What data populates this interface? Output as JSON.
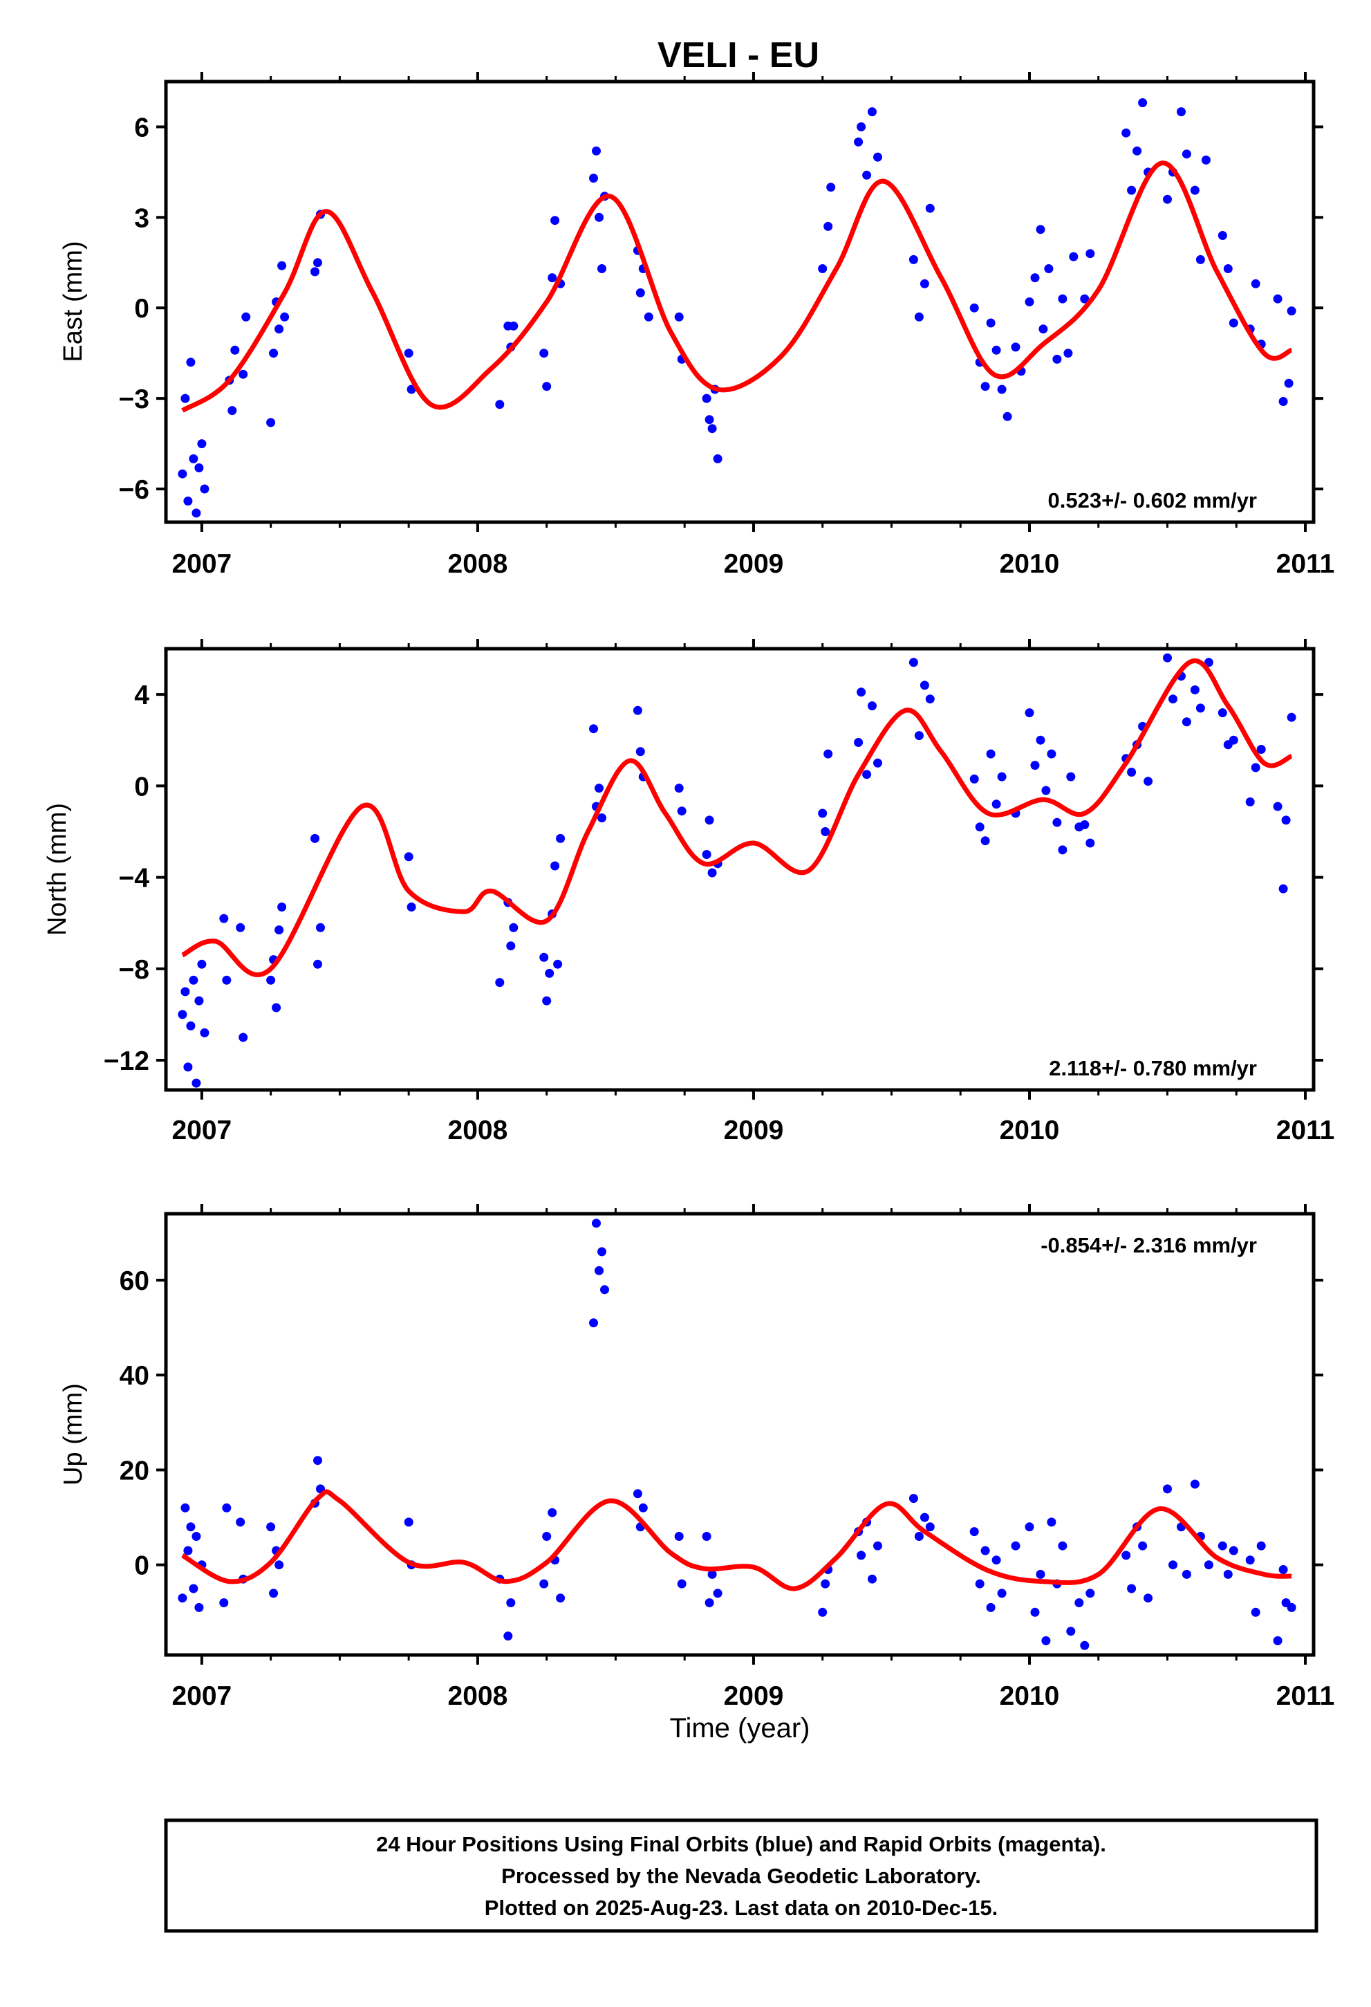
{
  "title": "VELI - EU",
  "colors": {
    "final_points": "#0000ff",
    "rapid_points": "#ff00ff",
    "model": "#ff0000",
    "frame": "#000000"
  },
  "xlabel": "Time (year)",
  "footer": {
    "line1": "24 Hour Positions Using Final Orbits (blue) and Rapid Orbits (magenta).",
    "line2": "Processed by the Nevada Geodetic Laboratory.",
    "line3": "Plotted on 2025-Aug-23. Last data on 2010-Dec-15."
  },
  "chart_data": [
    {
      "type": "scatter",
      "ylabel": "East (mm)",
      "rate": "0.523+/- 0.602 mm/yr",
      "xlim": [
        2006.87,
        2011.03
      ],
      "ylim": [
        -7.1,
        7.5
      ],
      "xticks": [
        2007,
        2008,
        2009,
        2010,
        2011
      ],
      "yticks": [
        6,
        3,
        0,
        -3,
        -6
      ],
      "ytick_labels": [
        "6",
        "3",
        "0",
        "−3",
        "−6"
      ],
      "grid": false,
      "model": {
        "x": [
          2006.93,
          2007.1,
          2007.3,
          2007.45,
          2007.62,
          2007.83,
          2008.05,
          2008.25,
          2008.48,
          2008.7,
          2008.87,
          2009.1,
          2009.3,
          2009.47,
          2009.68,
          2009.87,
          2010.05,
          2010.25,
          2010.48,
          2010.68,
          2010.85,
          2010.95
        ],
        "y": [
          -3.4,
          -2.4,
          0.5,
          3.2,
          0.5,
          -3.2,
          -2.0,
          0.2,
          3.7,
          -0.8,
          -2.7,
          -1.6,
          1.3,
          4.2,
          1.0,
          -2.2,
          -1.2,
          0.6,
          4.8,
          1.2,
          -1.5,
          -1.4
        ]
      },
      "series": [
        {
          "name": "Final Orbits",
          "x": [
            2006.93,
            2006.94,
            2006.95,
            2006.96,
            2006.97,
            2006.98,
            2006.99,
            2007.0,
            2007.01,
            2007.1,
            2007.11,
            2007.12,
            2007.15,
            2007.16,
            2007.25,
            2007.26,
            2007.27,
            2007.28,
            2007.29,
            2007.3,
            2007.41,
            2007.42,
            2007.43,
            2007.75,
            2007.76,
            2008.08,
            2008.11,
            2008.12,
            2008.13,
            2008.24,
            2008.25,
            2008.27,
            2008.28,
            2008.3,
            2008.42,
            2008.43,
            2008.44,
            2008.45,
            2008.46,
            2008.58,
            2008.59,
            2008.6,
            2008.62,
            2008.73,
            2008.74,
            2008.83,
            2008.84,
            2008.85,
            2008.86,
            2008.87,
            2009.25,
            2009.27,
            2009.28,
            2009.38,
            2009.39,
            2009.41,
            2009.43,
            2009.45,
            2009.58,
            2009.6,
            2009.62,
            2009.64,
            2009.8,
            2009.82,
            2009.84,
            2009.86,
            2009.88,
            2009.9,
            2009.92,
            2009.95,
            2009.97,
            2010.0,
            2010.02,
            2010.04,
            2010.05,
            2010.07,
            2010.1,
            2010.12,
            2010.14,
            2010.16,
            2010.2,
            2010.22,
            2010.35,
            2010.37,
            2010.39,
            2010.41,
            2010.43,
            2010.5,
            2010.52,
            2010.55,
            2010.57,
            2010.6,
            2010.62,
            2010.64,
            2010.7,
            2010.72,
            2010.74,
            2010.8,
            2010.82,
            2010.84,
            2010.9,
            2010.92,
            2010.94,
            2010.95
          ],
          "y": [
            -5.5,
            -3.0,
            -6.4,
            -1.8,
            -5.0,
            -6.8,
            -5.3,
            -4.5,
            -6.0,
            -2.4,
            -3.4,
            -1.4,
            -2.2,
            -0.3,
            -3.8,
            -1.5,
            0.2,
            -0.7,
            1.4,
            -0.3,
            1.2,
            1.5,
            3.1,
            -1.5,
            -2.7,
            -3.2,
            -0.6,
            -1.3,
            -0.6,
            -1.5,
            -2.6,
            1.0,
            2.9,
            0.8,
            4.3,
            5.2,
            3.0,
            1.3,
            3.7,
            1.9,
            0.5,
            1.3,
            -0.3,
            -0.3,
            -1.7,
            -3.0,
            -3.7,
            -4.0,
            -2.7,
            -5.0,
            1.3,
            2.7,
            4.0,
            5.5,
            6.0,
            4.4,
            6.5,
            5.0,
            1.6,
            -0.3,
            0.8,
            3.3,
            0.0,
            -1.8,
            -2.6,
            -0.5,
            -1.4,
            -2.7,
            -3.6,
            -1.3,
            -2.1,
            0.2,
            1.0,
            2.6,
            -0.7,
            1.3,
            -1.7,
            0.3,
            -1.5,
            1.7,
            0.3,
            1.8,
            5.8,
            3.9,
            5.2,
            6.8,
            4.5,
            3.6,
            4.5,
            6.5,
            5.1,
            3.9,
            1.6,
            4.9,
            2.4,
            1.3,
            -0.5,
            -0.7,
            0.8,
            -1.2,
            0.3,
            -3.1,
            -2.5,
            -0.1
          ]
        }
      ]
    },
    {
      "type": "scatter",
      "ylabel": "North (mm)",
      "rate": "2.118+/- 0.780 mm/yr",
      "xlim": [
        2006.87,
        2011.03
      ],
      "ylim": [
        -13.3,
        6.0
      ],
      "xticks": [
        2007,
        2008,
        2009,
        2010,
        2011
      ],
      "yticks": [
        4,
        0,
        -4,
        -8,
        -12
      ],
      "ytick_labels": [
        "4",
        "0",
        "−4",
        "−8",
        "−12"
      ],
      "grid": false,
      "model": {
        "x": [
          2006.93,
          2007.05,
          2007.25,
          2007.58,
          2007.75,
          2007.95,
          2008.05,
          2008.25,
          2008.4,
          2008.55,
          2008.68,
          2008.82,
          2009.0,
          2009.2,
          2009.38,
          2009.55,
          2009.68,
          2009.85,
          2010.05,
          2010.2,
          2010.35,
          2010.58,
          2010.72,
          2010.85,
          2010.95
        ],
        "y": [
          -7.4,
          -6.8,
          -8.0,
          -0.9,
          -4.6,
          -5.5,
          -4.6,
          -5.9,
          -2.0,
          1.1,
          -1.2,
          -3.4,
          -2.5,
          -3.7,
          0.5,
          3.3,
          1.5,
          -1.2,
          -0.6,
          -1.2,
          1.0,
          5.4,
          3.5,
          1.0,
          1.3
        ]
      },
      "series": [
        {
          "name": "Final Orbits",
          "x": [
            2006.93,
            2006.94,
            2006.95,
            2006.96,
            2006.97,
            2006.98,
            2006.99,
            2007.0,
            2007.01,
            2007.08,
            2007.09,
            2007.14,
            2007.15,
            2007.25,
            2007.26,
            2007.27,
            2007.28,
            2007.29,
            2007.41,
            2007.42,
            2007.43,
            2007.75,
            2007.76,
            2008.08,
            2008.11,
            2008.12,
            2008.13,
            2008.24,
            2008.25,
            2008.26,
            2008.27,
            2008.28,
            2008.29,
            2008.3,
            2008.42,
            2008.43,
            2008.44,
            2008.45,
            2008.58,
            2008.59,
            2008.6,
            2008.73,
            2008.74,
            2008.83,
            2008.84,
            2008.85,
            2008.87,
            2009.25,
            2009.26,
            2009.27,
            2009.38,
            2009.39,
            2009.41,
            2009.43,
            2009.45,
            2009.58,
            2009.6,
            2009.62,
            2009.64,
            2009.8,
            2009.82,
            2009.84,
            2009.86,
            2009.88,
            2009.9,
            2009.95,
            2010.0,
            2010.02,
            2010.04,
            2010.06,
            2010.08,
            2010.1,
            2010.12,
            2010.15,
            2010.18,
            2010.2,
            2010.22,
            2010.35,
            2010.37,
            2010.39,
            2010.41,
            2010.43,
            2010.5,
            2010.52,
            2010.55,
            2010.57,
            2010.6,
            2010.62,
            2010.65,
            2010.7,
            2010.72,
            2010.74,
            2010.8,
            2010.82,
            2010.84,
            2010.9,
            2010.92,
            2010.93,
            2010.95
          ],
          "y": [
            -10.0,
            -9.0,
            -12.3,
            -10.5,
            -8.5,
            -13.0,
            -9.4,
            -7.8,
            -10.8,
            -5.8,
            -8.5,
            -6.2,
            -11.0,
            -8.5,
            -7.6,
            -9.7,
            -6.3,
            -5.3,
            -2.3,
            -7.8,
            -6.2,
            -3.1,
            -5.3,
            -8.6,
            -5.1,
            -7.0,
            -6.2,
            -7.5,
            -9.4,
            -8.2,
            -5.6,
            -3.5,
            -7.8,
            -2.3,
            2.5,
            -0.9,
            -0.1,
            -1.4,
            3.3,
            1.5,
            0.4,
            -0.1,
            -1.1,
            -3.0,
            -1.5,
            -3.8,
            -3.4,
            -1.2,
            -2.0,
            1.4,
            1.9,
            4.1,
            0.5,
            3.5,
            1.0,
            5.4,
            2.2,
            4.4,
            3.8,
            0.3,
            -1.8,
            -2.4,
            1.4,
            -0.8,
            0.4,
            -1.2,
            3.2,
            0.9,
            2.0,
            -0.2,
            1.4,
            -1.6,
            -2.8,
            0.4,
            -1.8,
            -1.7,
            -2.5,
            1.2,
            0.6,
            1.8,
            2.6,
            0.2,
            5.6,
            3.8,
            4.8,
            2.8,
            4.2,
            3.4,
            5.4,
            3.2,
            1.8,
            2.0,
            -0.7,
            0.8,
            1.6,
            -0.9,
            -4.5,
            -1.5,
            3.0
          ]
        }
      ]
    },
    {
      "type": "scatter",
      "ylabel": "Up (mm)",
      "rate": "-0.854+/- 2.316 mm/yr",
      "xlim": [
        2006.87,
        2011.03
      ],
      "ylim": [
        -19,
        74
      ],
      "xticks": [
        2007,
        2008,
        2009,
        2010,
        2011
      ],
      "yticks": [
        60,
        40,
        20,
        0
      ],
      "ytick_labels": [
        "60",
        "40",
        "20",
        "0"
      ],
      "grid": false,
      "model": {
        "x": [
          2006.93,
          2007.1,
          2007.25,
          2007.42,
          2007.5,
          2007.75,
          2007.95,
          2008.1,
          2008.25,
          2008.48,
          2008.7,
          2008.82,
          2009.0,
          2009.15,
          2009.3,
          2009.48,
          2009.62,
          2009.85,
          2010.05,
          2010.25,
          2010.47,
          2010.68,
          2010.85,
          2010.95
        ],
        "y": [
          2.0,
          -3.5,
          0.5,
          14.0,
          13.5,
          0.5,
          0.5,
          -3.5,
          0.5,
          13.5,
          2.5,
          -0.8,
          -0.5,
          -5.0,
          1.5,
          12.8,
          7.0,
          -1.2,
          -3.5,
          -2.0,
          11.8,
          1.5,
          -2.0,
          -2.4
        ]
      },
      "series": [
        {
          "name": "Final Orbits",
          "x": [
            2006.93,
            2006.94,
            2006.95,
            2006.96,
            2006.97,
            2006.98,
            2006.99,
            2007.0,
            2007.08,
            2007.09,
            2007.14,
            2007.15,
            2007.25,
            2007.26,
            2007.27,
            2007.28,
            2007.41,
            2007.42,
            2007.43,
            2007.75,
            2007.76,
            2008.08,
            2008.11,
            2008.12,
            2008.24,
            2008.25,
            2008.27,
            2008.28,
            2008.3,
            2008.42,
            2008.43,
            2008.44,
            2008.45,
            2008.46,
            2008.58,
            2008.59,
            2008.6,
            2008.73,
            2008.74,
            2008.83,
            2008.84,
            2008.85,
            2008.87,
            2009.25,
            2009.26,
            2009.27,
            2009.38,
            2009.39,
            2009.41,
            2009.43,
            2009.45,
            2009.58,
            2009.6,
            2009.62,
            2009.64,
            2009.8,
            2009.82,
            2009.84,
            2009.86,
            2009.88,
            2009.9,
            2009.95,
            2010.0,
            2010.02,
            2010.04,
            2010.06,
            2010.08,
            2010.1,
            2010.12,
            2010.15,
            2010.18,
            2010.2,
            2010.22,
            2010.35,
            2010.37,
            2010.39,
            2010.41,
            2010.43,
            2010.5,
            2010.52,
            2010.55,
            2010.57,
            2010.6,
            2010.62,
            2010.65,
            2010.7,
            2010.72,
            2010.74,
            2010.8,
            2010.82,
            2010.84,
            2010.9,
            2010.92,
            2010.93,
            2010.95
          ],
          "y": [
            -7.0,
            12.0,
            3.0,
            8.0,
            -5.0,
            6.0,
            -9.0,
            0.0,
            -8.0,
            12.0,
            9.0,
            -3.0,
            8.0,
            -6.0,
            3.0,
            0.0,
            13.0,
            22.0,
            16.0,
            9.0,
            0.0,
            -3.0,
            -15.0,
            -8.0,
            -4.0,
            6.0,
            11.0,
            1.0,
            -7.0,
            51.0,
            72.0,
            62.0,
            66.0,
            58.0,
            15.0,
            8.0,
            12.0,
            6.0,
            -4.0,
            6.0,
            -8.0,
            -2.0,
            -6.0,
            -10.0,
            -4.0,
            -1.0,
            7.0,
            2.0,
            9.0,
            -3.0,
            4.0,
            14.0,
            6.0,
            10.0,
            8.0,
            7.0,
            -4.0,
            3.0,
            -9.0,
            1.0,
            -6.0,
            4.0,
            8.0,
            -10.0,
            -2.0,
            -16.0,
            9.0,
            -4.0,
            4.0,
            -14.0,
            -8.0,
            -17.0,
            -6.0,
            2.0,
            -5.0,
            8.0,
            4.0,
            -7.0,
            16.0,
            0.0,
            8.0,
            -2.0,
            17.0,
            6.0,
            0.0,
            4.0,
            -2.0,
            3.0,
            1.0,
            -10.0,
            4.0,
            -16.0,
            -1.0,
            -8.0,
            -9.0
          ]
        }
      ]
    }
  ]
}
